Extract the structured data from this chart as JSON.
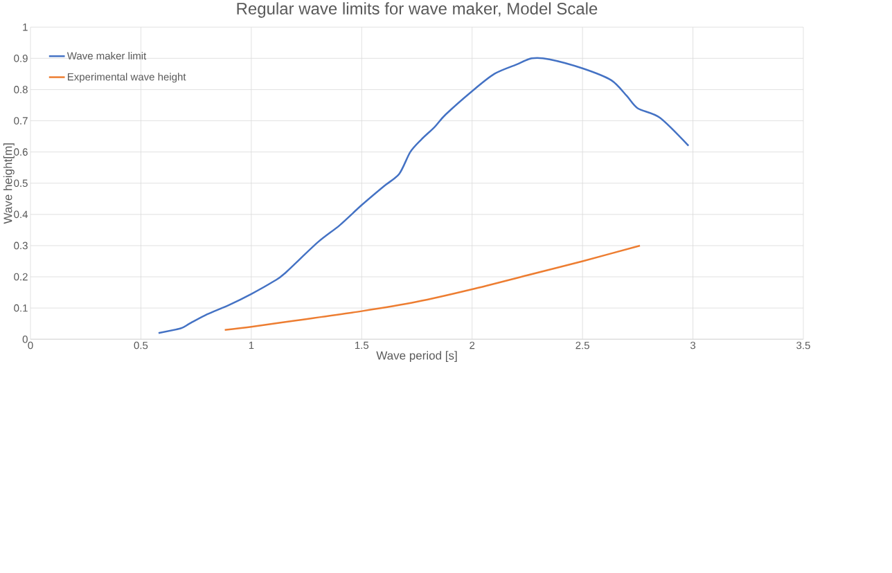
{
  "chart_data": {
    "type": "line",
    "title": "Regular wave limits for wave maker, Model Scale",
    "xlabel": "Wave period [s]",
    "ylabel": "Wave height[m]",
    "xlim": [
      0,
      3.5
    ],
    "ylim": [
      0,
      1
    ],
    "xticks": [
      0,
      0.5,
      1,
      1.5,
      2,
      2.5,
      3,
      3.5
    ],
    "yticks": [
      0,
      0.1,
      0.2,
      0.3,
      0.4,
      0.5,
      0.6,
      0.7,
      0.8,
      0.9,
      1
    ],
    "grid": true,
    "legend": "top left",
    "marker": "none",
    "line_style": "solid",
    "series": [
      {
        "name": "Wave maker limit",
        "color": "#4472c4",
        "x": [
          0.58,
          0.68,
          0.72,
          0.8,
          0.9,
          1.0,
          1.1,
          1.15,
          1.3,
          1.4,
          1.5,
          1.6,
          1.67,
          1.72,
          1.77,
          1.83,
          1.88,
          2.0,
          2.1,
          2.2,
          2.27,
          2.35,
          2.5,
          2.63,
          2.7,
          2.75,
          2.85,
          2.98
        ],
        "values": [
          0.02,
          0.035,
          0.05,
          0.08,
          0.11,
          0.145,
          0.185,
          0.21,
          0.31,
          0.365,
          0.43,
          0.49,
          0.53,
          0.6,
          0.64,
          0.68,
          0.72,
          0.795,
          0.85,
          0.88,
          0.9,
          0.897,
          0.868,
          0.83,
          0.78,
          0.74,
          0.71,
          0.62
        ]
      },
      {
        "name": "Experimental wave height",
        "color": "#ed7d31",
        "x": [
          0.88,
          1.0,
          1.2,
          1.5,
          1.75,
          2.0,
          2.25,
          2.5,
          2.76
        ],
        "values": [
          0.03,
          0.04,
          0.06,
          0.09,
          0.12,
          0.16,
          0.205,
          0.25,
          0.3
        ]
      }
    ]
  }
}
